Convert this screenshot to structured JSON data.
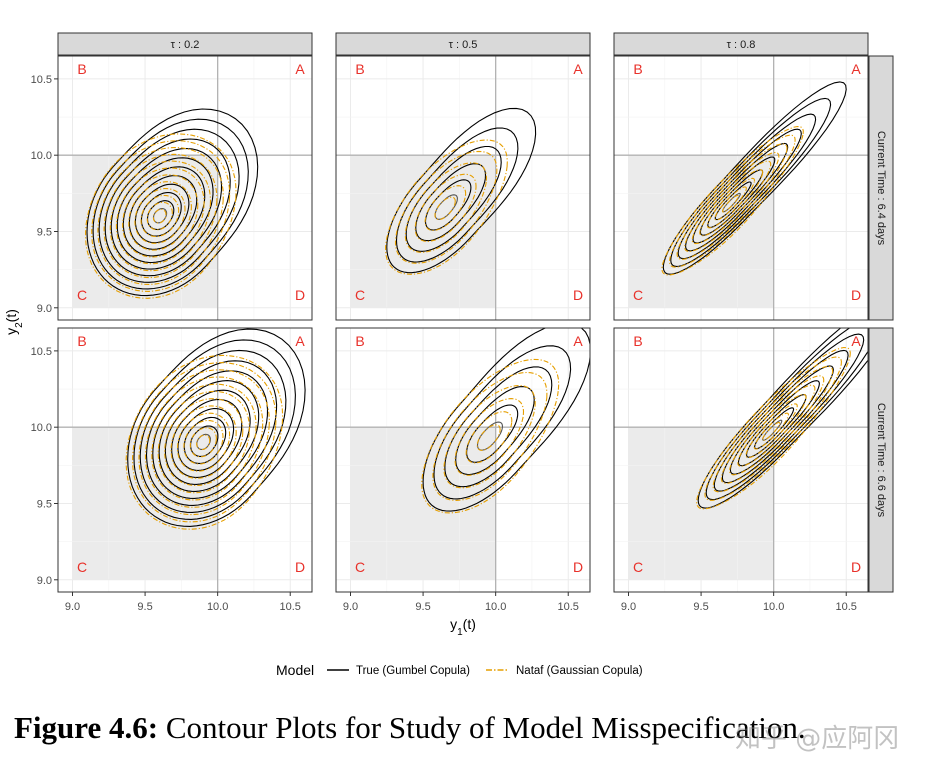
{
  "chart_data": {
    "type": "contour",
    "x_label": "y",
    "x_label_sub": "1",
    "x_label_suffix": "(t)",
    "y_label": "y",
    "y_label_sub": "2",
    "y_label_suffix": "(t)",
    "xlim": [
      8.9,
      10.65
    ],
    "ylim": [
      8.92,
      10.65
    ],
    "x_ticks": [
      "9.0",
      "9.5",
      "10.0",
      "10.5"
    ],
    "x_tick_values": [
      9.0,
      9.5,
      10.0,
      10.5
    ],
    "y_ticks": [
      "9.0",
      "9.5",
      "10.0",
      "10.5"
    ],
    "y_tick_values": [
      9.0,
      9.5,
      10.0,
      10.5
    ],
    "threshold": 10.0,
    "column_strips": [
      "τ : 0.2",
      "τ : 0.5",
      "τ : 0.8"
    ],
    "row_strips": [
      "Current Time : 6.4 days",
      "Current Time : 6.6 days"
    ],
    "quadrant_labels": {
      "top_left": "B",
      "top_right": "A",
      "bottom_left": "C",
      "bottom_right": "D"
    },
    "legend": {
      "title": "Model",
      "items": [
        {
          "label": "True (Gumbel Copula)",
          "color": "#000000",
          "dash": "solid"
        },
        {
          "label": "Nataf (Gaussian Copula)",
          "color": "#E69F00",
          "dash": "dashdot"
        }
      ]
    },
    "panels": [
      {
        "row": 0,
        "col": 0,
        "center": [
          9.6,
          9.6
        ],
        "extent": [
          0.5,
          0.52
        ],
        "corr": 0.2,
        "levels": 12,
        "true_peak": [
          10.15,
          10.17
        ]
      },
      {
        "row": 0,
        "col": 1,
        "center": [
          9.65,
          9.65
        ],
        "extent": [
          0.4,
          0.42
        ],
        "corr": 0.6,
        "levels": 6,
        "true_peak": [
          10.17,
          10.17
        ]
      },
      {
        "row": 0,
        "col": 2,
        "center": [
          9.7,
          9.68
        ],
        "extent": [
          0.46,
          0.46
        ],
        "corr": 0.9,
        "levels": 9,
        "true_peak": [
          10.22,
          10.22
        ]
      },
      {
        "row": 1,
        "col": 0,
        "center": [
          9.9,
          9.9
        ],
        "extent": [
          0.52,
          0.55
        ],
        "corr": 0.2,
        "levels": 12,
        "true_peak": [
          10.47,
          10.46
        ]
      },
      {
        "row": 1,
        "col": 1,
        "center": [
          9.95,
          9.93
        ],
        "extent": [
          0.45,
          0.48
        ],
        "corr": 0.6,
        "levels": 6,
        "true_peak": [
          10.47,
          10.47
        ]
      },
      {
        "row": 1,
        "col": 2,
        "center": [
          9.98,
          9.97
        ],
        "extent": [
          0.5,
          0.5
        ],
        "corr": 0.9,
        "levels": 9,
        "true_peak": [
          10.54,
          10.52
        ]
      }
    ],
    "colors": {
      "quadrant_c": "#ebebeb",
      "strip": "#d9d9d9",
      "grid": "#ebebeb",
      "ref_line": "#b3b3b3",
      "quadrant_label": "#e8312a",
      "true": "#000000",
      "nataf": "#E69F00"
    }
  },
  "caption": {
    "label": "Figure 4.6:",
    "text": "Contour Plots for Study of Model Misspecification."
  },
  "watermark": "知乎 @应阿冈"
}
